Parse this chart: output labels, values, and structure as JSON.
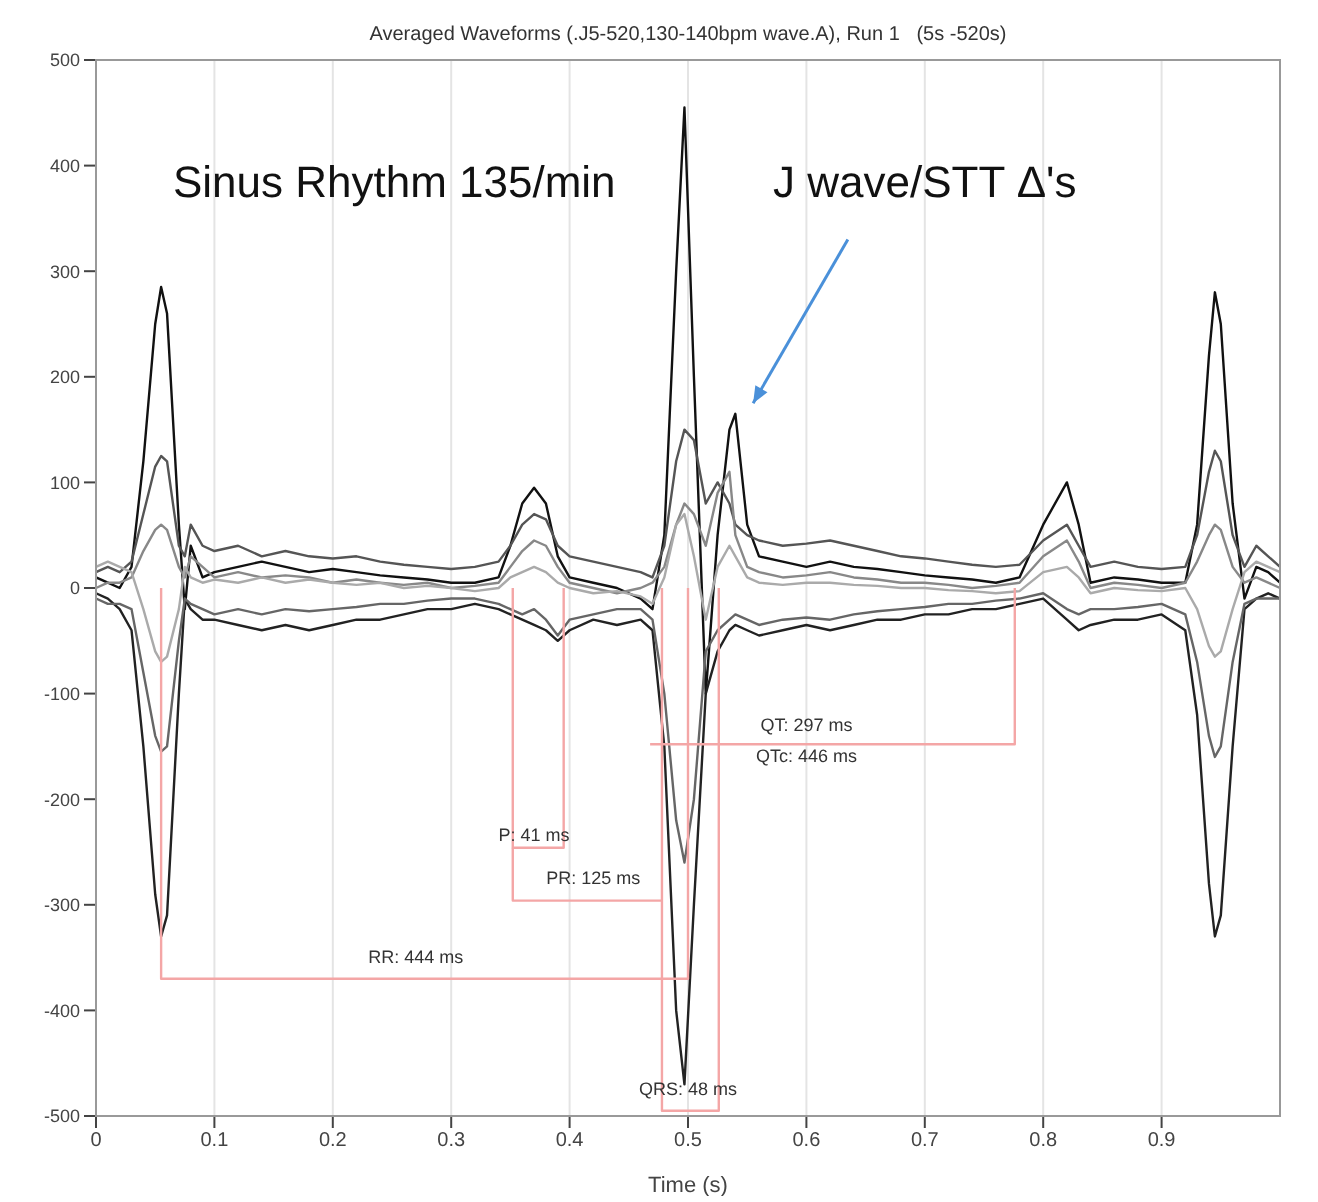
{
  "chart_data": {
    "type": "line",
    "title": "Averaged Waveforms (.J5-520,130-140bpm wave.A), Run 1   (5s -520s)",
    "xlabel": "Time (s)",
    "x": [
      0,
      0.01,
      0.02,
      0.03,
      0.04,
      0.05,
      0.055,
      0.06,
      0.07,
      0.075,
      0.08,
      0.09,
      0.1,
      0.12,
      0.14,
      0.16,
      0.18,
      0.2,
      0.22,
      0.24,
      0.26,
      0.28,
      0.3,
      0.32,
      0.34,
      0.35,
      0.36,
      0.37,
      0.38,
      0.39,
      0.4,
      0.42,
      0.44,
      0.46,
      0.47,
      0.48,
      0.49,
      0.497,
      0.505,
      0.515,
      0.525,
      0.535,
      0.54,
      0.55,
      0.56,
      0.58,
      0.6,
      0.62,
      0.64,
      0.66,
      0.68,
      0.7,
      0.72,
      0.74,
      0.76,
      0.78,
      0.8,
      0.82,
      0.83,
      0.84,
      0.86,
      0.88,
      0.9,
      0.92,
      0.93,
      0.94,
      0.945,
      0.95,
      0.96,
      0.97,
      0.98,
      0.99,
      1.0
    ],
    "series": [
      {
        "color": "#111111",
        "values": [
          10,
          5,
          0,
          20,
          120,
          250,
          285,
          260,
          60,
          -20,
          40,
          10,
          15,
          20,
          25,
          20,
          15,
          18,
          15,
          12,
          10,
          8,
          5,
          5,
          10,
          40,
          80,
          95,
          80,
          30,
          10,
          5,
          0,
          -10,
          -20,
          50,
          300,
          455,
          200,
          -100,
          50,
          150,
          165,
          60,
          30,
          25,
          20,
          25,
          20,
          18,
          15,
          12,
          10,
          8,
          5,
          10,
          60,
          100,
          60,
          5,
          10,
          8,
          5,
          5,
          60,
          220,
          280,
          250,
          80,
          -10,
          20,
          15,
          5
        ]
      },
      {
        "color": "#222222",
        "values": [
          -5,
          -10,
          -20,
          -40,
          -150,
          -290,
          -330,
          -310,
          -100,
          -10,
          -20,
          -30,
          -30,
          -35,
          -40,
          -35,
          -40,
          -35,
          -30,
          -30,
          -25,
          -20,
          -20,
          -15,
          -20,
          -25,
          -30,
          -35,
          -40,
          -50,
          -40,
          -30,
          -35,
          -30,
          -40,
          -150,
          -400,
          -470,
          -300,
          -100,
          -60,
          -40,
          -35,
          -40,
          -45,
          -40,
          -35,
          -40,
          -35,
          -30,
          -30,
          -25,
          -25,
          -20,
          -20,
          -15,
          -10,
          -30,
          -40,
          -35,
          -30,
          -30,
          -25,
          -40,
          -120,
          -280,
          -330,
          -310,
          -150,
          -20,
          -10,
          -5,
          -10
        ]
      },
      {
        "color": "#555555",
        "values": [
          15,
          20,
          15,
          25,
          70,
          115,
          125,
          120,
          40,
          30,
          60,
          40,
          35,
          40,
          30,
          35,
          30,
          28,
          30,
          25,
          22,
          20,
          18,
          20,
          25,
          40,
          60,
          70,
          65,
          40,
          30,
          25,
          20,
          15,
          10,
          40,
          120,
          150,
          140,
          80,
          100,
          80,
          60,
          50,
          45,
          40,
          42,
          45,
          40,
          35,
          30,
          28,
          25,
          22,
          20,
          22,
          45,
          60,
          40,
          20,
          25,
          20,
          18,
          20,
          50,
          110,
          130,
          120,
          50,
          20,
          40,
          30,
          20
        ]
      },
      {
        "color": "#888888",
        "values": [
          0,
          5,
          5,
          10,
          35,
          55,
          60,
          55,
          20,
          10,
          30,
          20,
          10,
          15,
          10,
          12,
          10,
          5,
          8,
          5,
          3,
          5,
          0,
          2,
          5,
          20,
          35,
          45,
          40,
          20,
          5,
          0,
          -5,
          0,
          5,
          20,
          60,
          80,
          70,
          40,
          90,
          110,
          50,
          20,
          15,
          10,
          12,
          15,
          10,
          8,
          5,
          5,
          3,
          0,
          2,
          5,
          30,
          45,
          25,
          0,
          5,
          3,
          0,
          5,
          25,
          50,
          60,
          55,
          20,
          5,
          10,
          5,
          0
        ]
      },
      {
        "color": "#666666",
        "values": [
          -10,
          -15,
          -15,
          -20,
          -80,
          -140,
          -155,
          -150,
          -50,
          -10,
          -15,
          -20,
          -25,
          -20,
          -25,
          -20,
          -22,
          -20,
          -18,
          -15,
          -15,
          -12,
          -10,
          -10,
          -15,
          -20,
          -25,
          -20,
          -30,
          -45,
          -30,
          -25,
          -20,
          -20,
          -30,
          -100,
          -220,
          -260,
          -200,
          -60,
          -40,
          -30,
          -25,
          -30,
          -35,
          -30,
          -28,
          -30,
          -25,
          -22,
          -20,
          -18,
          -15,
          -15,
          -12,
          -10,
          -5,
          -20,
          -25,
          -20,
          -20,
          -18,
          -15,
          -25,
          -70,
          -140,
          -160,
          -150,
          -70,
          -15,
          -10,
          -10,
          -10
        ]
      },
      {
        "color": "#aaaaaa",
        "values": [
          20,
          25,
          20,
          15,
          -20,
          -60,
          -70,
          -65,
          -20,
          20,
          10,
          5,
          8,
          5,
          10,
          5,
          8,
          5,
          3,
          5,
          0,
          2,
          0,
          -3,
          0,
          10,
          15,
          20,
          15,
          5,
          0,
          -5,
          -3,
          -8,
          -15,
          10,
          60,
          70,
          30,
          -30,
          20,
          40,
          30,
          10,
          5,
          3,
          5,
          5,
          3,
          2,
          0,
          0,
          -2,
          -3,
          -5,
          -3,
          15,
          20,
          10,
          -5,
          0,
          -2,
          -3,
          0,
          -20,
          -55,
          -65,
          -60,
          -20,
          15,
          25,
          20,
          15
        ]
      },
      {
        "color": "#f4a6a6",
        "x": [
          0.055,
          0.055,
          0.5,
          0.5
        ],
        "values": [
          0,
          -370,
          -370,
          0
        ]
      },
      {
        "color": "#f4a6a6",
        "x": [
          0.352,
          0.352,
          0.395,
          0.395
        ],
        "values": [
          0,
          -246,
          -246,
          0
        ]
      },
      {
        "color": "#f4a6a6",
        "x": [
          0.352,
          0.352,
          0.478
        ],
        "values": [
          -246,
          -296,
          -296
        ]
      },
      {
        "color": "#f4a6a6",
        "x": [
          0.478,
          0.478,
          0.526,
          0.526
        ],
        "values": [
          0,
          -495,
          -495,
          0
        ]
      },
      {
        "color": "#f4a6a6",
        "x": [
          0.468,
          0.776,
          0.776
        ],
        "values": [
          -148,
          -148,
          0
        ]
      }
    ],
    "xlim": [
      0,
      1
    ],
    "xticks": [
      0,
      0.1,
      0.2,
      0.3,
      0.4,
      0.5,
      0.6,
      0.7,
      0.8,
      0.9
    ],
    "ylim": [
      -500,
      500
    ],
    "yticks": [
      -500,
      -400,
      -300,
      -200,
      -100,
      0,
      100,
      200,
      300,
      400,
      500
    ],
    "grid": "x",
    "marker": "none",
    "line_style": "solid",
    "annotations": [
      "Sinus Rhythm 135/min",
      "J wave/STT Δ's",
      "P: 41 ms",
      "PR: 125 ms",
      "RR: 444 ms",
      "QT: 297 ms",
      "QTc: 446 ms",
      "QRS: 48 ms"
    ]
  }
}
